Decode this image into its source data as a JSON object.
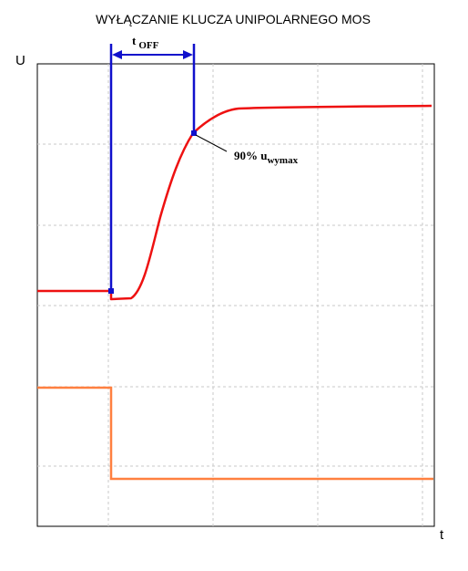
{
  "title": "WYŁĄCZANIE KLUCZA UNIPOLARNEGO MOS",
  "axes": {
    "y_label": "U",
    "x_label": "t"
  },
  "interval": {
    "symbol": "t",
    "subscript": "OFF"
  },
  "annotation": {
    "prefix": "90% u",
    "subscript": "wymax"
  },
  "colors": {
    "output_voltage": "#ee1111",
    "control_signal": "#ff8040",
    "interval_marker": "#1010cc",
    "frame": "#000000",
    "grid": "#c8c8c8"
  }
}
